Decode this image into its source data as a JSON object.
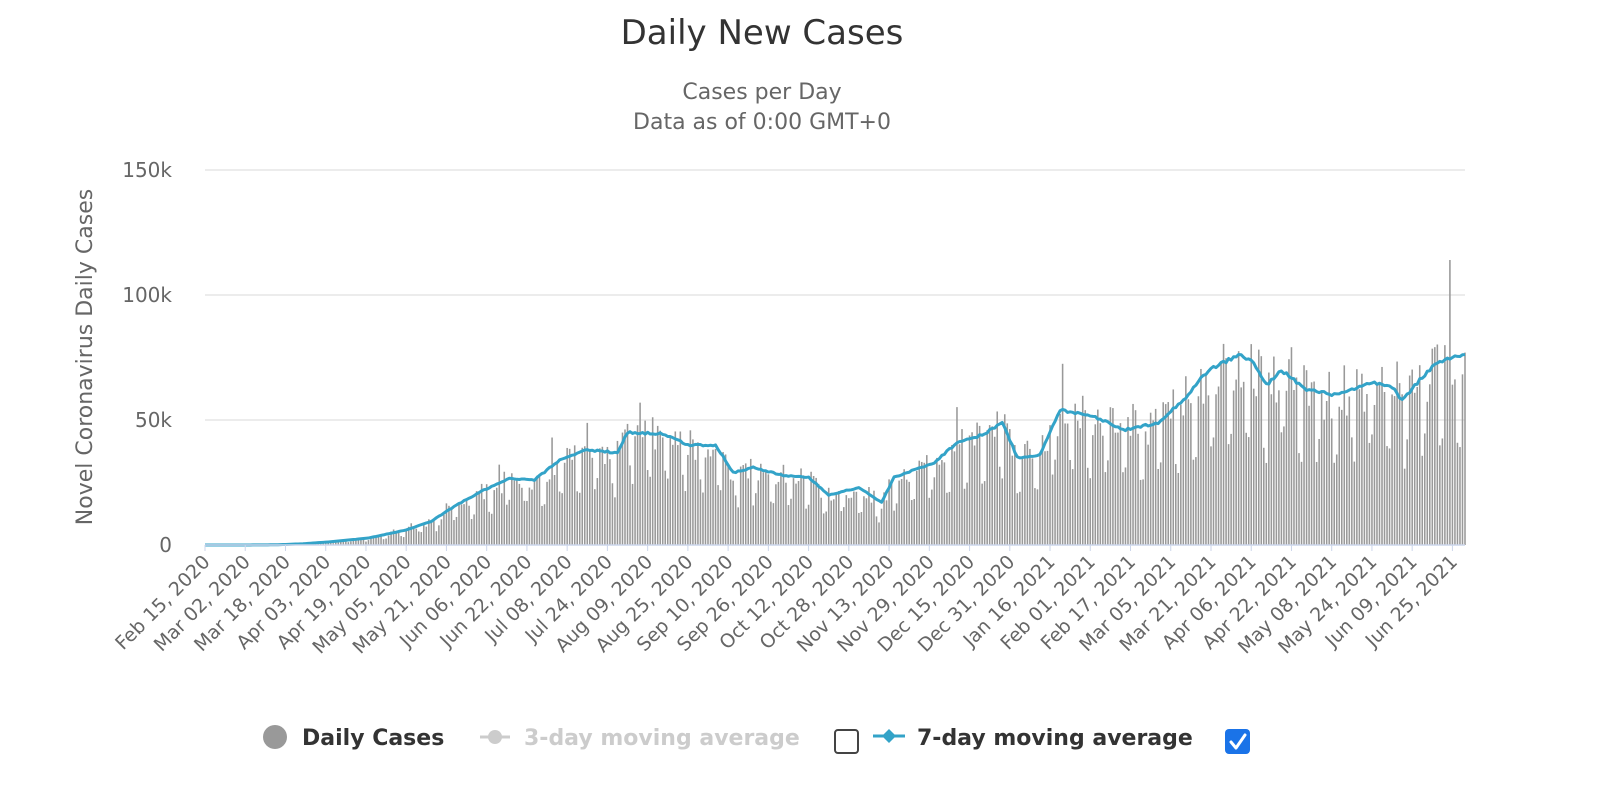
{
  "chart_data": {
    "type": "bar",
    "title": "Daily New Cases",
    "subtitle_lines": [
      "Cases per Day",
      "Data as of 0:00 GMT+0"
    ],
    "ylabel": "Novel Coronavirus Daily Cases",
    "xlabel": "",
    "ylim": [
      0,
      150000
    ],
    "y_ticks": [
      0,
      50000,
      100000,
      150000
    ],
    "y_tick_labels": [
      "0",
      "50k",
      "100k",
      "150k"
    ],
    "x_start_date": "2020-02-15",
    "x_end_date": "2021-06-30",
    "x_tick_labels": [
      "Feb 15, 2020",
      "Mar 02, 2020",
      "Mar 18, 2020",
      "Apr 03, 2020",
      "Apr 19, 2020",
      "May 05, 2020",
      "May 21, 2020",
      "Jun 06, 2020",
      "Jun 22, 2020",
      "Jul 08, 2020",
      "Jul 24, 2020",
      "Aug 09, 2020",
      "Aug 25, 2020",
      "Sep 10, 2020",
      "Sep 26, 2020",
      "Oct 12, 2020",
      "Oct 28, 2020",
      "Nov 13, 2020",
      "Nov 29, 2020",
      "Dec 15, 2020",
      "Dec 31, 2020",
      "Jan 16, 2021",
      "Feb 01, 2021",
      "Feb 17, 2021",
      "Mar 05, 2021",
      "Mar 21, 2021",
      "Apr 06, 2021",
      "Apr 22, 2021",
      "May 08, 2021",
      "May 24, 2021",
      "Jun 09, 2021",
      "Jun 25, 2021"
    ],
    "colors": {
      "bars": "#999999",
      "avg7": "#33a3c8",
      "avg3": "#cccccc",
      "grid": "#e6e6e6",
      "checkbox_checked": "#1a73e8"
    },
    "series": [
      {
        "name": "Daily Cases",
        "kind": "bar",
        "visible": true,
        "anchors": [
          [
            "2020-02-15",
            0
          ],
          [
            "2020-03-01",
            0
          ],
          [
            "2020-03-15",
            100
          ],
          [
            "2020-03-25",
            500
          ],
          [
            "2020-04-05",
            1300
          ],
          [
            "2020-04-20",
            2800
          ],
          [
            "2020-05-05",
            6000
          ],
          [
            "2020-05-15",
            9500
          ],
          [
            "2020-05-25",
            16000
          ],
          [
            "2020-06-05",
            22000
          ],
          [
            "2020-06-15",
            26500
          ],
          [
            "2020-06-25",
            26000
          ],
          [
            "2020-07-05",
            34000
          ],
          [
            "2020-07-15",
            38000
          ],
          [
            "2020-07-28",
            37000
          ],
          [
            "2020-08-01",
            45000
          ],
          [
            "2020-08-15",
            44500
          ],
          [
            "2020-08-25",
            40000
          ],
          [
            "2020-09-05",
            40000
          ],
          [
            "2020-09-12",
            29000
          ],
          [
            "2020-09-20",
            31000
          ],
          [
            "2020-10-01",
            28000
          ],
          [
            "2020-10-12",
            27000
          ],
          [
            "2020-10-20",
            20000
          ],
          [
            "2020-11-01",
            23000
          ],
          [
            "2020-11-10",
            17000
          ],
          [
            "2020-11-15",
            27000
          ],
          [
            "2020-12-01",
            33000
          ],
          [
            "2020-12-10",
            41000
          ],
          [
            "2020-12-20",
            44000
          ],
          [
            "2020-12-28",
            49000
          ],
          [
            "2021-01-03",
            35000
          ],
          [
            "2021-01-12",
            36000
          ],
          [
            "2021-01-20",
            54000
          ],
          [
            "2021-02-01",
            52000
          ],
          [
            "2021-02-15",
            46000
          ],
          [
            "2021-02-28",
            49000
          ],
          [
            "2021-03-10",
            58000
          ],
          [
            "2021-03-20",
            70000
          ],
          [
            "2021-04-01",
            76000
          ],
          [
            "2021-04-06",
            74000
          ],
          [
            "2021-04-12",
            64000
          ],
          [
            "2021-04-18",
            70000
          ],
          [
            "2021-04-28",
            62000
          ],
          [
            "2021-05-10",
            60000
          ],
          [
            "2021-05-25",
            65000
          ],
          [
            "2021-06-01",
            63000
          ],
          [
            "2021-06-05",
            58000
          ],
          [
            "2021-06-12",
            66000
          ],
          [
            "2021-06-18",
            72000
          ],
          [
            "2021-06-25",
            75000
          ],
          [
            "2021-06-30",
            76000
          ]
        ],
        "peak_value": 114000
      },
      {
        "name": "3-day moving average",
        "kind": "line",
        "visible": false,
        "checked": false
      },
      {
        "name": "7-day moving average",
        "kind": "line",
        "visible": true,
        "checked": true,
        "anchors": [
          [
            "2020-02-15",
            0
          ],
          [
            "2020-03-01",
            0
          ],
          [
            "2020-03-15",
            100
          ],
          [
            "2020-03-25",
            500
          ],
          [
            "2020-04-05",
            1300
          ],
          [
            "2020-04-20",
            2800
          ],
          [
            "2020-05-05",
            6000
          ],
          [
            "2020-05-15",
            9500
          ],
          [
            "2020-05-25",
            16000
          ],
          [
            "2020-06-05",
            22000
          ],
          [
            "2020-06-15",
            26500
          ],
          [
            "2020-06-25",
            26000
          ],
          [
            "2020-07-05",
            34000
          ],
          [
            "2020-07-15",
            38000
          ],
          [
            "2020-07-28",
            37000
          ],
          [
            "2020-08-01",
            45000
          ],
          [
            "2020-08-15",
            44500
          ],
          [
            "2020-08-25",
            40000
          ],
          [
            "2020-09-05",
            40000
          ],
          [
            "2020-09-12",
            29000
          ],
          [
            "2020-09-20",
            31000
          ],
          [
            "2020-10-01",
            28000
          ],
          [
            "2020-10-12",
            27000
          ],
          [
            "2020-10-20",
            20000
          ],
          [
            "2020-11-01",
            23000
          ],
          [
            "2020-11-10",
            17000
          ],
          [
            "2020-11-15",
            27000
          ],
          [
            "2020-12-01",
            33000
          ],
          [
            "2020-12-10",
            41000
          ],
          [
            "2020-12-20",
            44000
          ],
          [
            "2020-12-28",
            49000
          ],
          [
            "2021-01-03",
            35000
          ],
          [
            "2021-01-12",
            36000
          ],
          [
            "2021-01-20",
            54000
          ],
          [
            "2021-02-01",
            52000
          ],
          [
            "2021-02-15",
            46000
          ],
          [
            "2021-02-28",
            49000
          ],
          [
            "2021-03-10",
            58000
          ],
          [
            "2021-03-20",
            70000
          ],
          [
            "2021-04-01",
            76000
          ],
          [
            "2021-04-06",
            74000
          ],
          [
            "2021-04-12",
            64000
          ],
          [
            "2021-04-18",
            70000
          ],
          [
            "2021-04-28",
            62000
          ],
          [
            "2021-05-10",
            60000
          ],
          [
            "2021-05-25",
            65000
          ],
          [
            "2021-06-01",
            63000
          ],
          [
            "2021-06-05",
            58000
          ],
          [
            "2021-06-12",
            66000
          ],
          [
            "2021-06-18",
            72000
          ],
          [
            "2021-06-25",
            75000
          ],
          [
            "2021-06-30",
            76000
          ]
        ]
      }
    ],
    "legend_position": "bottom-center"
  }
}
